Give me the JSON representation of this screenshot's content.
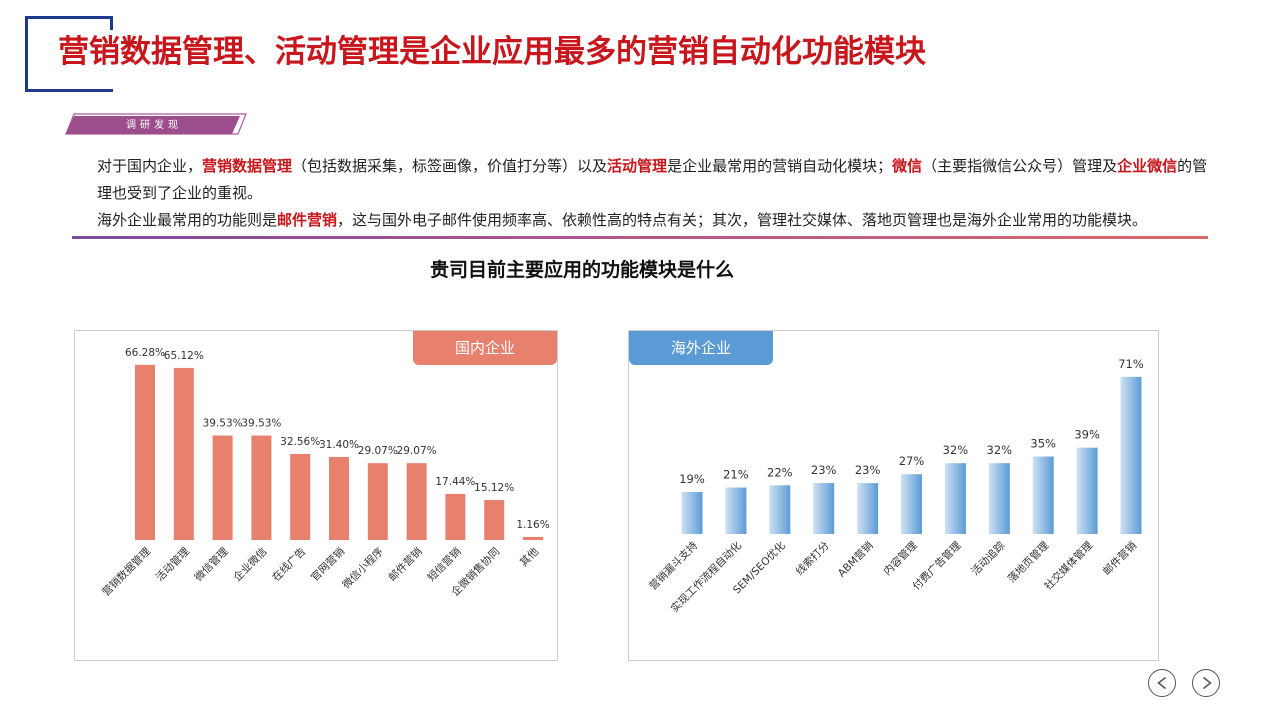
{
  "header": {
    "title": "营销数据管理、活动管理是企业应用最多的营销自动化功能模块",
    "tag": "调研发现",
    "accent": "#c8161d",
    "frame_color": "#1f3a8c"
  },
  "findings": {
    "line1": [
      {
        "text": "对于国内企业，",
        "highlight": false
      },
      {
        "text": "营销数据管理",
        "highlight": true
      },
      {
        "text": "（包括数据采集，标签画像，价值打分等）以及",
        "highlight": false
      },
      {
        "text": "活动管理",
        "highlight": true
      },
      {
        "text": "是企业最常用的营销自动化模块；",
        "highlight": false
      },
      {
        "text": "微信",
        "highlight": true
      },
      {
        "text": "（主要指微信公众号）管理及",
        "highlight": false
      },
      {
        "text": "企业微信",
        "highlight": true
      },
      {
        "text": "的管理也受到了企业的重视。",
        "highlight": false
      }
    ],
    "line2": [
      {
        "text": "海外企业最常用的功能则是",
        "highlight": false
      },
      {
        "text": "邮件营销",
        "highlight": true
      },
      {
        "text": "，这与国外电子邮件使用频率高、依赖性高的特点有关；其次，管理社交媒体、落地页管理也是海外企业常用的功能模块。",
        "highlight": false
      }
    ]
  },
  "section": {
    "subtitle": "贵司目前主要应用的功能模块是什么"
  },
  "chart_data": [
    {
      "type": "bar",
      "title": "国内企业",
      "color": "#e8806e",
      "title_bg": "#e8806e",
      "categories": [
        "营销数据管理",
        "活动管理",
        "微信管理",
        "企业微信",
        "在线广告",
        "官网营销",
        "微信小程序",
        "邮件营销",
        "短信营销",
        "企微销售协同",
        "其他"
      ],
      "values": [
        66.28,
        65.12,
        39.53,
        39.53,
        32.56,
        31.4,
        29.07,
        29.07,
        17.44,
        15.12,
        1.16
      ],
      "labels": [
        "66.28%",
        "65.12%",
        "39.53%",
        "39.53%",
        "32.56%",
        "31.40%",
        "29.07%",
        "29.07%",
        "17.44%",
        "15.12%",
        "1.16%"
      ],
      "ylim": [
        0,
        70
      ],
      "grid": false
    },
    {
      "type": "bar",
      "title": "海外企业",
      "color": "#5b9bd5",
      "title_bg": "#5b9bd5",
      "categories": [
        "营销漏斗支持",
        "实现工作流程自动化",
        "SEM/SEO优化",
        "线索打分",
        "ABM营销",
        "内容管理",
        "付费广告管理",
        "活动追踪",
        "落地页管理",
        "社交媒体管理",
        "邮件营销"
      ],
      "values": [
        19,
        21,
        22,
        23,
        23,
        27,
        32,
        32,
        35,
        39,
        71
      ],
      "labels": [
        "19%",
        "21%",
        "22%",
        "23%",
        "23%",
        "27%",
        "32%",
        "32%",
        "35%",
        "39%",
        "71%"
      ],
      "ylim": [
        0,
        75
      ],
      "grid": false
    }
  ],
  "nav": {
    "prev_icon": "chevron-left-icon",
    "next_icon": "chevron-right-icon"
  }
}
